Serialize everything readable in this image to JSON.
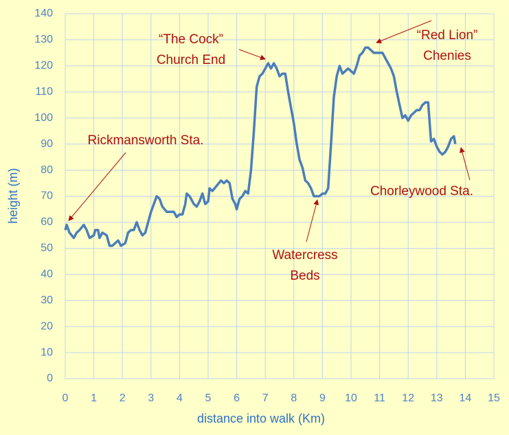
{
  "chart_data": {
    "type": "line",
    "xlabel": "distance into walk (Km)",
    "ylabel": "height (m)",
    "xlim": [
      0,
      15
    ],
    "xticks": [
      0,
      1,
      2,
      3,
      4,
      5,
      6,
      7,
      8,
      9,
      10,
      11,
      12,
      13,
      14,
      15
    ],
    "ylim": [
      0,
      140
    ],
    "yticks": [
      0,
      10,
      20,
      30,
      40,
      50,
      60,
      70,
      80,
      90,
      100,
      110,
      120,
      130,
      140
    ],
    "grid": true,
    "color": "#4a7ebb",
    "x": [
      0,
      0.05,
      0.15,
      0.3,
      0.4,
      0.5,
      0.65,
      0.75,
      0.85,
      1.0,
      1.05,
      1.15,
      1.2,
      1.3,
      1.45,
      1.55,
      1.65,
      1.75,
      1.85,
      1.95,
      2.1,
      2.2,
      2.3,
      2.4,
      2.5,
      2.6,
      2.7,
      2.8,
      2.9,
      3.0,
      3.1,
      3.2,
      3.3,
      3.4,
      3.55,
      3.7,
      3.8,
      3.9,
      4.0,
      4.1,
      4.2,
      4.25,
      4.35,
      4.5,
      4.6,
      4.7,
      4.8,
      4.9,
      5.0,
      5.05,
      5.15,
      5.3,
      5.45,
      5.55,
      5.65,
      5.75,
      5.85,
      5.95,
      6.0,
      6.1,
      6.2,
      6.3,
      6.4,
      6.5,
      6.6,
      6.7,
      6.8,
      6.9,
      7.0,
      7.1,
      7.2,
      7.3,
      7.4,
      7.5,
      7.6,
      7.7,
      7.8,
      7.9,
      8.0,
      8.1,
      8.2,
      8.3,
      8.4,
      8.5,
      8.6,
      8.7,
      8.8,
      8.9,
      9.0,
      9.1,
      9.2,
      9.3,
      9.4,
      9.5,
      9.6,
      9.7,
      9.8,
      9.9,
      10.0,
      10.1,
      10.2,
      10.3,
      10.4,
      10.5,
      10.6,
      10.7,
      10.8,
      10.9,
      11.0,
      11.1,
      11.2,
      11.3,
      11.4,
      11.5,
      11.6,
      11.7,
      11.8,
      11.9,
      12.0,
      12.1,
      12.2,
      12.3,
      12.4,
      12.5,
      12.6,
      12.7,
      12.8,
      12.9,
      13.0,
      13.1,
      13.2,
      13.3,
      13.4,
      13.5,
      13.6,
      13.65
    ],
    "values": [
      57,
      59,
      56,
      54,
      56,
      57,
      59,
      57,
      54,
      55,
      57,
      57,
      54,
      56,
      55,
      51,
      51,
      52,
      53,
      51,
      52,
      56,
      57,
      57,
      60,
      57,
      55,
      56,
      60,
      64,
      67,
      70,
      69,
      66,
      64,
      64,
      64,
      62,
      63,
      63,
      67,
      71,
      70,
      67,
      66,
      68,
      71,
      67,
      68,
      73,
      72,
      74,
      76,
      75,
      76,
      75,
      69,
      67,
      65,
      69,
      70,
      72,
      71,
      80,
      95,
      112,
      116,
      117,
      119,
      121,
      119,
      121,
      119,
      116,
      117,
      117,
      110,
      104,
      98,
      90,
      84,
      81,
      76,
      75,
      73,
      70,
      70,
      70,
      71,
      71,
      73,
      90,
      108,
      116,
      120,
      117,
      118,
      119,
      118,
      117,
      120,
      124,
      125,
      127,
      127,
      126,
      125,
      125,
      125,
      125,
      123,
      121,
      119,
      116,
      110,
      105,
      100,
      101,
      99,
      101,
      102,
      103,
      103,
      105,
      106,
      106,
      91,
      92,
      89,
      87,
      86,
      87,
      89,
      92,
      93,
      90
    ],
    "annotations": [
      {
        "lines": [
          "“The Cock”",
          "Church End"
        ]
      },
      {
        "lines": [
          "“Red Lion”",
          "Chenies"
        ]
      },
      {
        "lines": [
          "Rickmansworth Sta."
        ]
      },
      {
        "lines": [
          "Watercress",
          "Beds"
        ]
      },
      {
        "lines": [
          "Chorleywood Sta."
        ]
      }
    ]
  }
}
